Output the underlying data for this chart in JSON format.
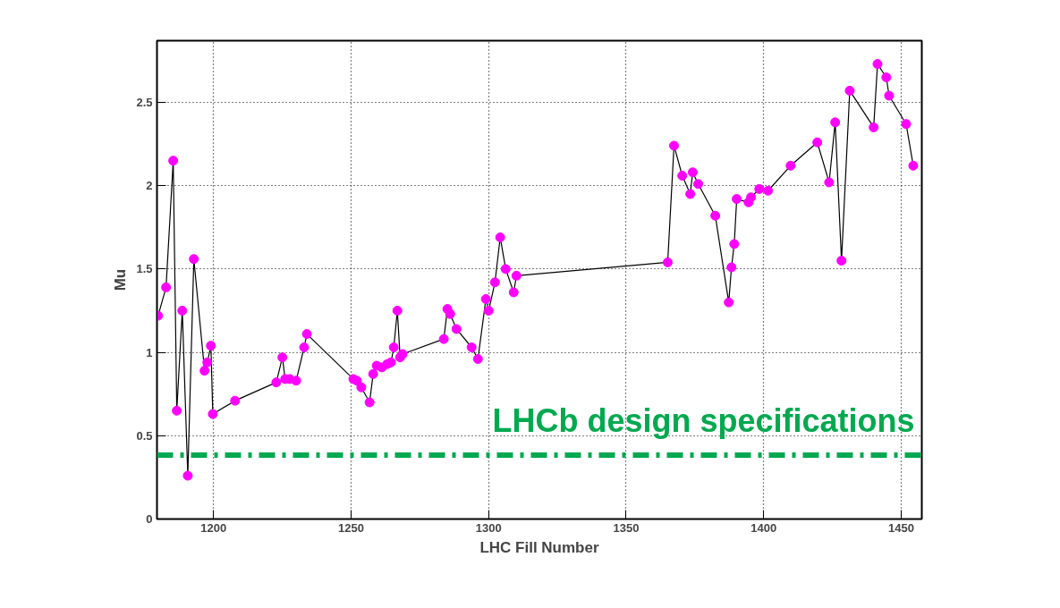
{
  "chart_data": {
    "type": "line",
    "xlabel": "LHC Fill Number",
    "ylabel": "Mu",
    "xlim": [
      1179.4,
      1457.5
    ],
    "ylim": [
      0,
      2.87
    ],
    "xticks": [
      1200,
      1250,
      1300,
      1350,
      1400,
      1450
    ],
    "yticks": [
      0,
      0.5,
      1,
      1.5,
      2,
      2.5
    ],
    "grid": true,
    "marker": "circle",
    "line_style": "solid",
    "series": [
      {
        "color": "#ff00ff",
        "x": [
          1179.8,
          1182.7,
          1185.3,
          1186.6,
          1188.6,
          1190.6,
          1192.8,
          1196.7,
          1197.7,
          1199.0,
          1199.7,
          1207.8,
          1222.8,
          1225.0,
          1226.0,
          1227.7,
          1230.0,
          1232.9,
          1233.9,
          1250.8,
          1252.1,
          1253.7,
          1256.7,
          1258.0,
          1259.3,
          1261.2,
          1263.2,
          1264.5,
          1265.5,
          1266.8,
          1267.8,
          1268.7,
          1283.7,
          1285.0,
          1286.0,
          1288.3,
          1293.8,
          1296.1,
          1299.0,
          1300.0,
          1302.3,
          1304.2,
          1306.2,
          1309.1,
          1310.1,
          1365.1,
          1367.4,
          1370.4,
          1373.3,
          1374.2,
          1376.2,
          1382.4,
          1387.3,
          1388.3,
          1389.3,
          1390.2,
          1394.5,
          1395.4,
          1398.4,
          1401.6,
          1409.8,
          1419.5,
          1423.8,
          1426.0,
          1428.3,
          1431.3,
          1440.0,
          1441.4,
          1444.6,
          1445.6,
          1451.8,
          1454.4
        ],
        "values": [
          1.22,
          1.39,
          2.15,
          0.65,
          1.25,
          0.26,
          1.56,
          0.89,
          0.94,
          1.04,
          0.63,
          0.71,
          0.82,
          0.97,
          0.84,
          0.84,
          0.83,
          1.03,
          1.11,
          0.84,
          0.83,
          0.79,
          0.7,
          0.87,
          0.92,
          0.91,
          0.93,
          0.94,
          1.03,
          1.25,
          0.97,
          0.99,
          1.08,
          1.26,
          1.23,
          1.14,
          1.03,
          0.96,
          1.32,
          1.25,
          1.42,
          1.69,
          1.5,
          1.36,
          1.46,
          1.54,
          2.24,
          2.06,
          1.95,
          2.08,
          2.01,
          1.82,
          1.3,
          1.51,
          1.65,
          1.92,
          1.9,
          1.93,
          1.98,
          1.97,
          2.12,
          2.26,
          2.02,
          2.38,
          1.55,
          2.57,
          2.35,
          2.73,
          2.65,
          2.54,
          2.37,
          2.12
        ]
      }
    ],
    "ref_lines": [
      {
        "axis": "y",
        "value": 0.384,
        "label": "LHCb design specifications",
        "color": "#00a84f",
        "line_style": "dashdot"
      }
    ]
  }
}
